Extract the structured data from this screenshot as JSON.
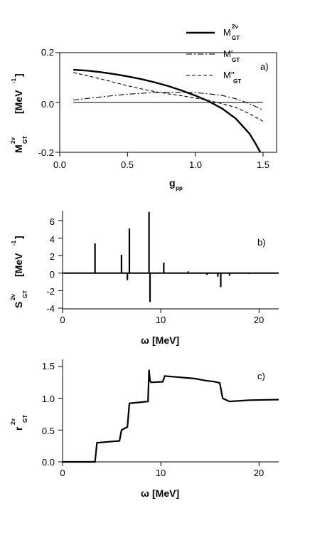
{
  "chart_data": [
    {
      "panel": "a)",
      "type": "line",
      "xlabel": {
        "main": "g",
        "sub": "pp"
      },
      "ylabel": {
        "main": "M",
        "sup": "2ν",
        "sub": "GT",
        "unit": "[MeV",
        "unit_sup": "-1",
        "unit_close": "]"
      },
      "xlim": [
        0.0,
        1.6
      ],
      "ylim": [
        -0.2,
        0.2
      ],
      "xticks": [
        "0.0",
        "0.5",
        "1.0",
        "1.5"
      ],
      "yticks": [
        "0.2",
        "0.0",
        "-0.2"
      ],
      "legend_position": "top-right",
      "series": [
        {
          "name": "M",
          "name_sup": "2ν",
          "name_sub": "GT",
          "style": "solid",
          "x": [
            0.1,
            0.2,
            0.3,
            0.4,
            0.5,
            0.6,
            0.7,
            0.8,
            0.9,
            1.0,
            1.1,
            1.2,
            1.3,
            1.4,
            1.45,
            1.48
          ],
          "y": [
            0.131,
            0.128,
            0.122,
            0.114,
            0.105,
            0.094,
            0.081,
            0.066,
            0.048,
            0.028,
            0.005,
            -0.025,
            -0.065,
            -0.125,
            -0.17,
            -0.2
          ]
        },
        {
          "name": "M'",
          "name_sub": "GT",
          "style": "dashdot",
          "x": [
            0.1,
            0.2,
            0.3,
            0.4,
            0.5,
            0.6,
            0.7,
            0.8,
            0.9,
            1.0,
            1.1,
            1.2,
            1.3,
            1.4,
            1.5
          ],
          "y": [
            0.01,
            0.016,
            0.022,
            0.028,
            0.033,
            0.037,
            0.04,
            0.041,
            0.041,
            0.039,
            0.035,
            0.028,
            0.015,
            -0.005,
            -0.03
          ]
        },
        {
          "name": "M''",
          "name_sub": "GT",
          "style": "dashed",
          "x": [
            0.1,
            0.2,
            0.3,
            0.4,
            0.5,
            0.6,
            0.7,
            0.8,
            0.9,
            1.0,
            1.1,
            1.2,
            1.3,
            1.4,
            1.5
          ],
          "y": [
            0.12,
            0.108,
            0.095,
            0.081,
            0.067,
            0.055,
            0.044,
            0.035,
            0.027,
            0.018,
            0.008,
            -0.005,
            -0.02,
            -0.045,
            -0.075
          ]
        }
      ],
      "reference_line_y": 0.0
    },
    {
      "panel": "b)",
      "type": "line",
      "xlabel": {
        "main": "ω",
        "unit": "[MeV]"
      },
      "ylabel": {
        "main": "S",
        "sup": "2ν",
        "sub": "GT",
        "unit": "[MeV",
        "unit_sup": "-1",
        "unit_close": "]"
      },
      "xlim": [
        0,
        22
      ],
      "ylim": [
        -4,
        7.2
      ],
      "xticks": [
        "0",
        "10",
        "20"
      ],
      "yticks": [
        "6",
        "4",
        "2",
        "0",
        "-2",
        "-4"
      ],
      "peaks": [
        {
          "x": 3.3,
          "y": 3.4
        },
        {
          "x": 6.0,
          "y": 2.1
        },
        {
          "x": 6.6,
          "y": -0.8
        },
        {
          "x": 6.8,
          "y": 5.1
        },
        {
          "x": 8.8,
          "y": 7.0
        },
        {
          "x": 8.9,
          "y": -3.3
        },
        {
          "x": 10.3,
          "y": 1.2
        },
        {
          "x": 12.8,
          "y": 0.2
        },
        {
          "x": 14.7,
          "y": -0.2
        },
        {
          "x": 15.8,
          "y": -0.4
        },
        {
          "x": 16.1,
          "y": -1.6
        },
        {
          "x": 17.0,
          "y": -0.3
        },
        {
          "x": 19.0,
          "y": -0.1
        }
      ]
    },
    {
      "panel": "c)",
      "type": "line",
      "xlabel": {
        "main": "ω",
        "unit": "[MeV]"
      },
      "ylabel": {
        "main": "r",
        "sup": "2ν",
        "sub": "GT"
      },
      "xlim": [
        0,
        22
      ],
      "ylim": [
        0,
        1.55
      ],
      "xticks": [
        "0",
        "10",
        "20"
      ],
      "yticks": [
        "1.5",
        "1.0",
        "0.5",
        "0.0"
      ],
      "series": [
        {
          "x": [
            0,
            3.3,
            3.5,
            5.8,
            6.0,
            6.6,
            6.8,
            8.7,
            8.8,
            8.9,
            9.0,
            10.2,
            10.4,
            12.0,
            13.5,
            14.5,
            15.5,
            16.0,
            16.3,
            17.0,
            19.0,
            22.0
          ],
          "y": [
            0.0,
            0.0,
            0.3,
            0.33,
            0.5,
            0.55,
            0.92,
            0.95,
            1.45,
            1.28,
            1.25,
            1.26,
            1.35,
            1.33,
            1.31,
            1.28,
            1.26,
            1.24,
            1.0,
            0.95,
            0.97,
            0.98
          ]
        }
      ]
    }
  ]
}
